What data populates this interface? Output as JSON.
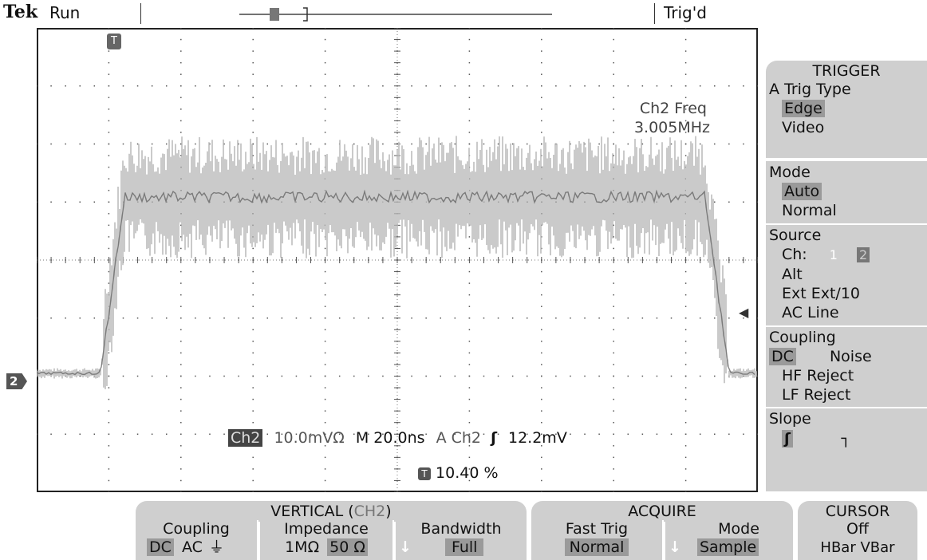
{
  "status": {
    "brand": "Tek",
    "run_state": "Run",
    "trig_state": "Trig'd"
  },
  "measurement": {
    "label": "Ch2 Freq",
    "value": "3.005MHz"
  },
  "readout": {
    "channel": "Ch2",
    "volts_div": "10.0mVΩ",
    "timebase": "M 20.0ns",
    "trig_channel": "A  Ch2",
    "slope_symbol": "ʃ",
    "trig_level": "12.2mV",
    "trig_position": "10.40 %"
  },
  "markers": {
    "trigger_marker": "T",
    "channel_marker": "2"
  },
  "trigger_menu": {
    "title": "TRIGGER",
    "type_label": "A Trig Type",
    "type_selected": "Edge",
    "type_other": "Video",
    "mode_label": "Mode",
    "mode_selected": "Auto",
    "mode_other": "Normal",
    "source_label": "Source",
    "source_ch": "Ch:",
    "source_ch1": "1",
    "source_ch2": "2",
    "source_alt": "Alt",
    "source_ext": "Ext  Ext/10",
    "source_acline": "AC Line",
    "coupling_label": "Coupling",
    "coupling_dc": "DC",
    "coupling_noise": "Noise",
    "coupling_hf": "HF Reject",
    "coupling_lf": "LF Reject",
    "slope_label": "Slope",
    "slope_rise": "ʃ",
    "slope_fall": "┐"
  },
  "bottom_menu": {
    "vertical_title": "VERTICAL (",
    "vertical_ch": "CH2",
    "vertical_close": ")",
    "coupling_label": "Coupling",
    "coupling_dc": "DC",
    "coupling_ac": "AC",
    "coupling_gnd": "⏚",
    "impedance_label": "Impedance",
    "impedance_1m": "1MΩ",
    "impedance_50": "50 Ω",
    "bandwidth_label": "Bandwidth",
    "bandwidth_value": "Full",
    "acquire_title": "ACQUIRE",
    "fasttrig_label": "Fast Trig",
    "fasttrig_value": "Normal",
    "mode_label": "Mode",
    "mode_value": "Sample",
    "cursor_title": "CURSOR",
    "cursor_value": "Off",
    "cursor_options": "HBar VBar"
  },
  "colors": {
    "trace": "#b8b8b8",
    "trace_dark": "#666666",
    "menu_bg": "#cfcfcf",
    "highlight": "#9a9a9a"
  }
}
